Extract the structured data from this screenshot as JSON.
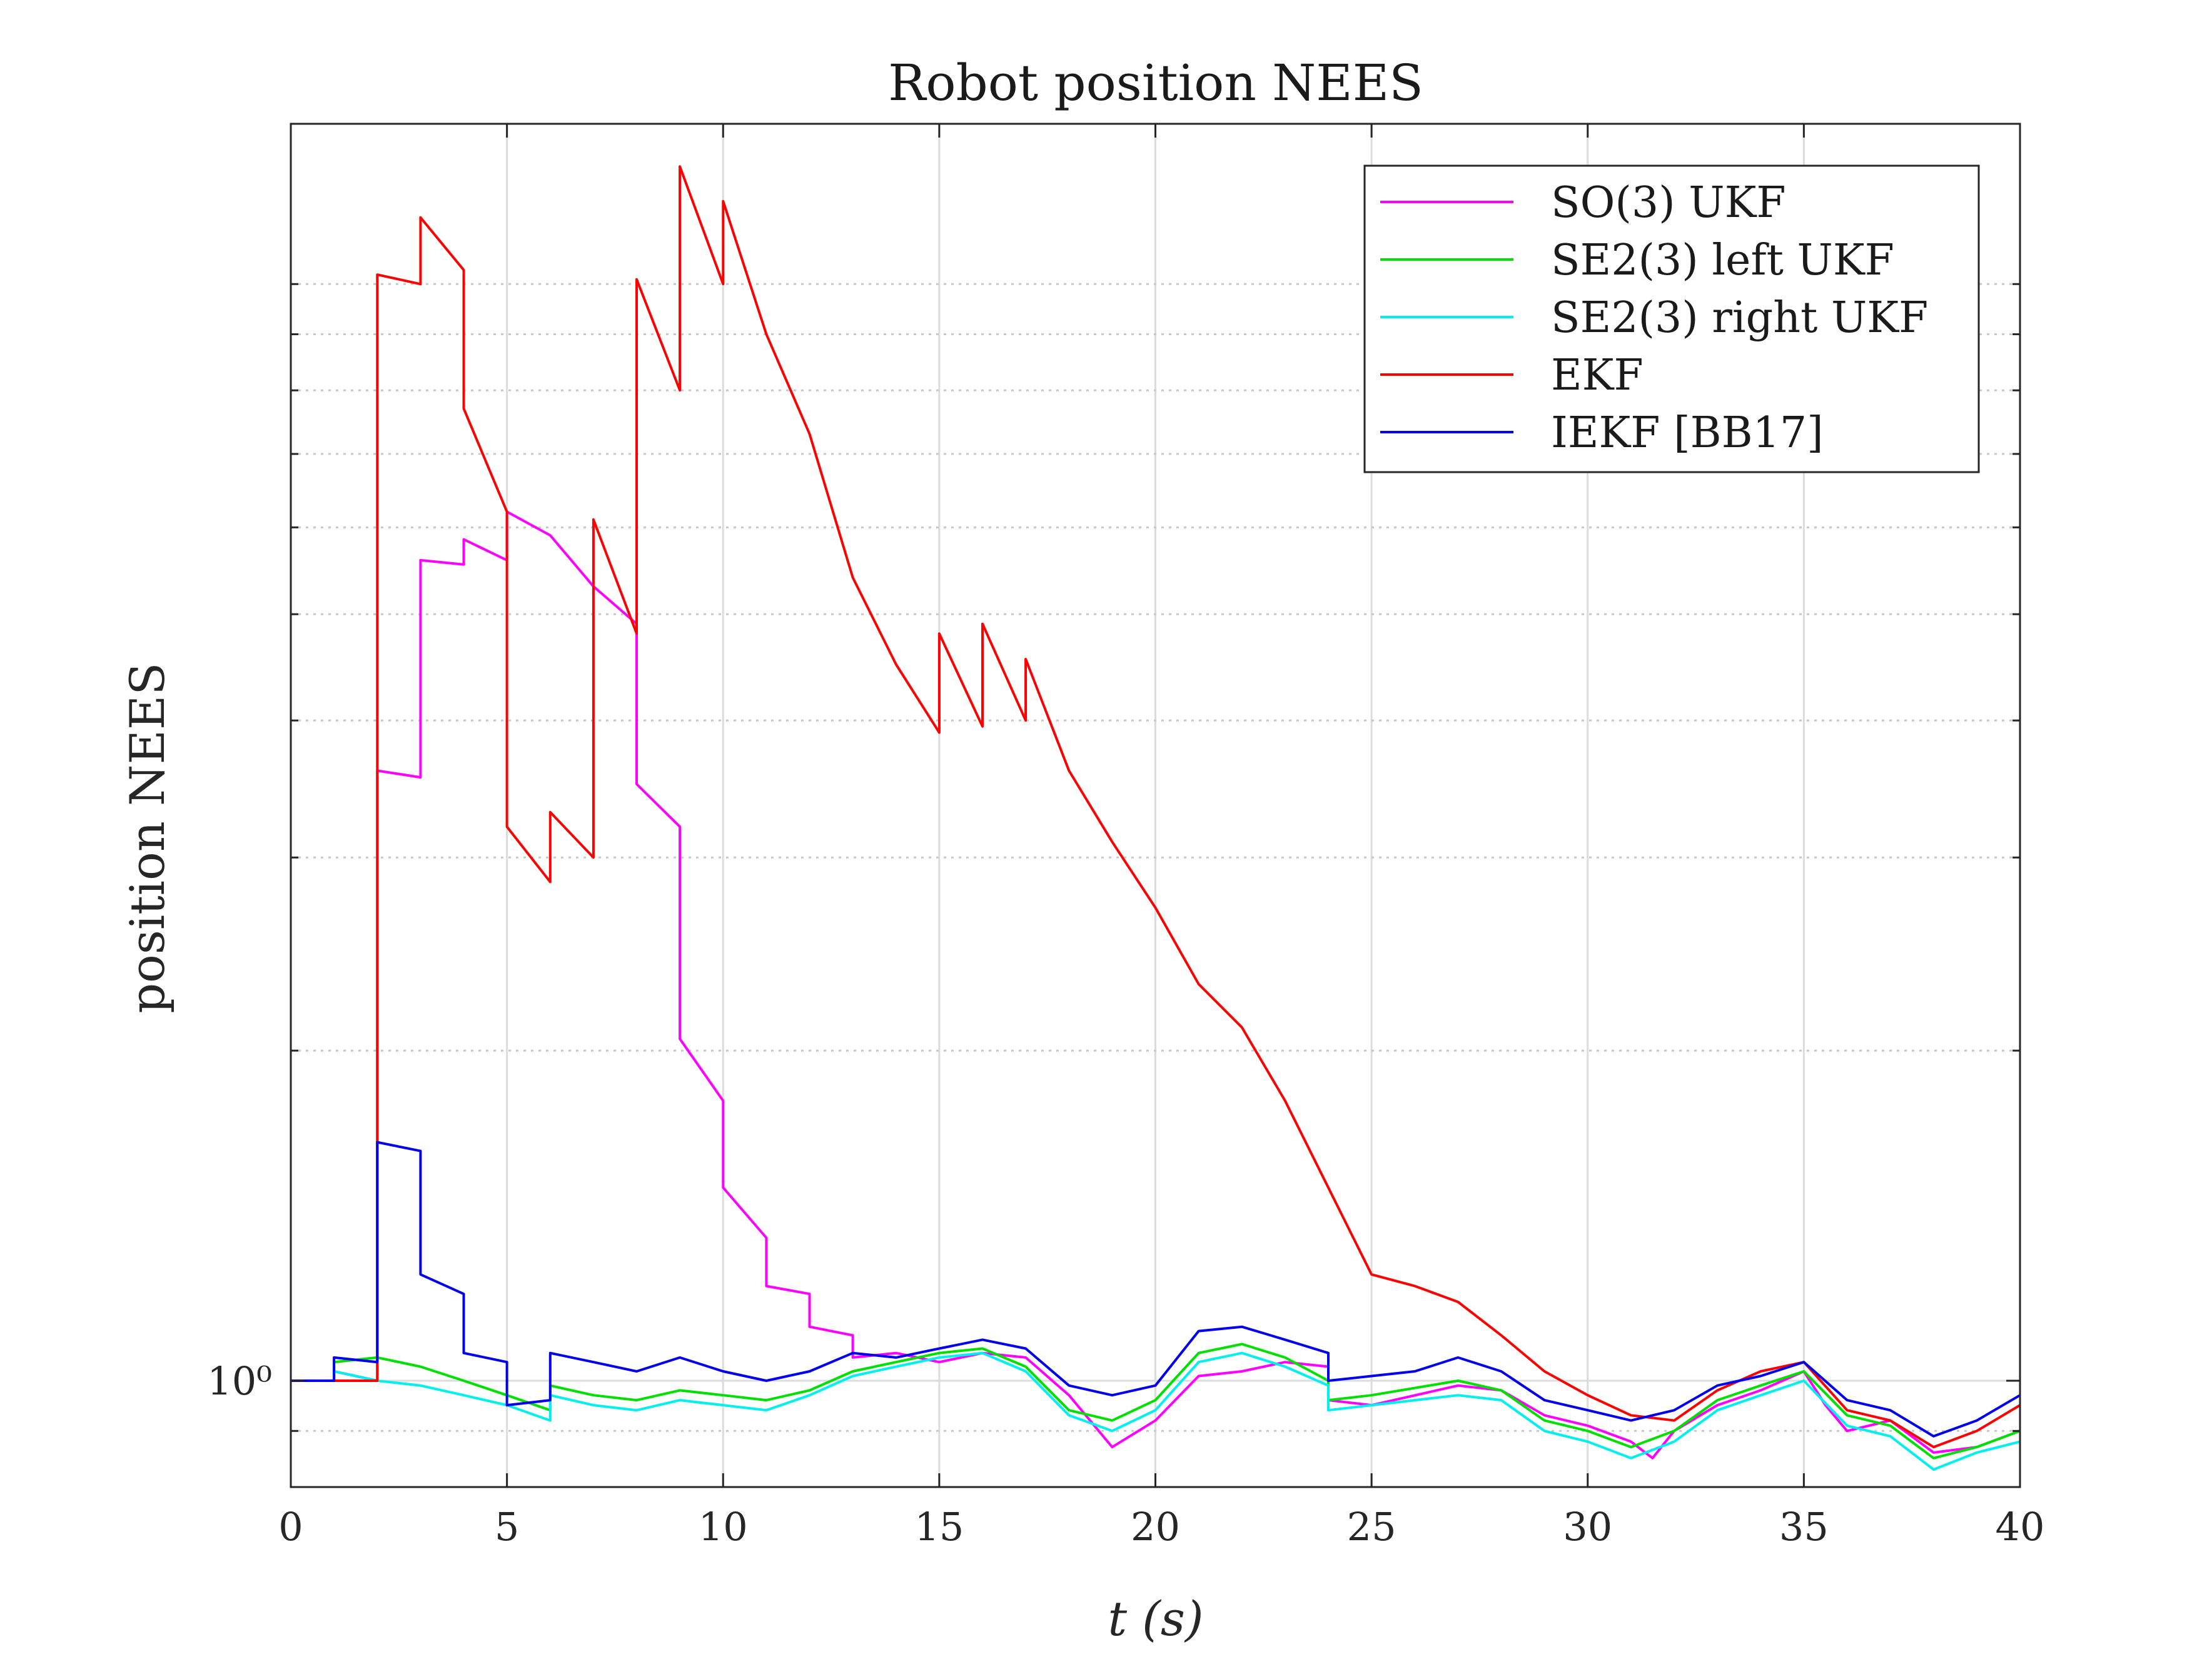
{
  "chart_data": {
    "type": "line",
    "title": "Robot position NEES",
    "xlabel": "t (s)",
    "ylabel": "position NEES",
    "yscale": "log",
    "xlim": [
      0,
      40
    ],
    "ylim": [
      0.8,
      14
    ],
    "xticks": [
      0,
      5,
      10,
      15,
      20,
      25,
      30,
      35,
      40
    ],
    "xtick_labels": [
      "0",
      "5",
      "10",
      "15",
      "20",
      "25",
      "30",
      "35",
      "40"
    ],
    "yticks": [
      1
    ],
    "ytick_labels": [
      "10⁰"
    ],
    "grid": true,
    "legend": "top-right",
    "series": [
      {
        "name": "SO(3) UKF",
        "color": "#ff00ff",
        "points": [
          [
            0,
            1.0
          ],
          [
            1,
            1.0
          ],
          [
            1.0,
            1.02
          ],
          [
            2,
            1.0
          ],
          [
            2.0,
            3.6
          ],
          [
            3,
            3.55
          ],
          [
            3.0,
            5.6
          ],
          [
            4,
            5.55
          ],
          [
            4.0,
            5.85
          ],
          [
            5,
            5.6
          ],
          [
            5.0,
            6.2
          ],
          [
            6,
            5.9
          ],
          [
            7,
            5.3
          ],
          [
            8,
            4.9
          ],
          [
            8.0,
            3.5
          ],
          [
            9,
            3.2
          ],
          [
            9.0,
            2.05
          ],
          [
            10,
            1.8
          ],
          [
            10.0,
            1.5
          ],
          [
            11,
            1.35
          ],
          [
            11.0,
            1.22
          ],
          [
            12,
            1.2
          ],
          [
            12.0,
            1.12
          ],
          [
            13,
            1.1
          ],
          [
            13.0,
            1.05
          ],
          [
            14,
            1.06
          ],
          [
            15,
            1.04
          ],
          [
            16,
            1.06
          ],
          [
            17,
            1.05
          ],
          [
            18,
            0.97
          ],
          [
            19,
            0.87
          ],
          [
            20,
            0.92
          ],
          [
            21,
            1.01
          ],
          [
            22,
            1.02
          ],
          [
            23,
            1.04
          ],
          [
            24,
            1.03
          ],
          [
            24.0,
            0.96
          ],
          [
            25,
            0.95
          ],
          [
            27,
            0.99
          ],
          [
            28,
            0.98
          ],
          [
            29,
            0.93
          ],
          [
            30,
            0.91
          ],
          [
            31,
            0.88
          ],
          [
            31.5,
            0.85
          ],
          [
            32,
            0.9
          ],
          [
            33,
            0.95
          ],
          [
            34,
            0.98
          ],
          [
            35,
            1.02
          ],
          [
            35.5,
            0.95
          ],
          [
            36,
            0.9
          ],
          [
            37,
            0.92
          ],
          [
            38,
            0.86
          ],
          [
            39,
            0.87
          ],
          [
            40,
            0.9
          ]
        ]
      },
      {
        "name": "SE2(3) left UKF",
        "color": "#00e000",
        "points": [
          [
            0,
            1.0
          ],
          [
            1,
            1.0
          ],
          [
            1.0,
            1.04
          ],
          [
            2,
            1.05
          ],
          [
            3,
            1.03
          ],
          [
            4,
            1.0
          ],
          [
            5,
            0.97
          ],
          [
            6,
            0.94
          ],
          [
            6.0,
            0.99
          ],
          [
            7,
            0.97
          ],
          [
            8,
            0.96
          ],
          [
            9,
            0.98
          ],
          [
            10,
            0.97
          ],
          [
            11,
            0.96
          ],
          [
            12,
            0.98
          ],
          [
            13,
            1.02
          ],
          [
            14,
            1.04
          ],
          [
            15,
            1.06
          ],
          [
            16,
            1.07
          ],
          [
            17,
            1.03
          ],
          [
            18,
            0.94
          ],
          [
            19,
            0.92
          ],
          [
            20,
            0.96
          ],
          [
            21,
            1.06
          ],
          [
            22,
            1.08
          ],
          [
            23,
            1.05
          ],
          [
            24,
            1.0
          ],
          [
            24.0,
            0.96
          ],
          [
            25,
            0.97
          ],
          [
            27,
            1.0
          ],
          [
            28,
            0.98
          ],
          [
            29,
            0.92
          ],
          [
            30,
            0.9
          ],
          [
            31,
            0.87
          ],
          [
            32,
            0.9
          ],
          [
            33,
            0.96
          ],
          [
            34,
            0.99
          ],
          [
            35,
            1.02
          ],
          [
            36,
            0.93
          ],
          [
            37,
            0.91
          ],
          [
            38,
            0.85
          ],
          [
            39,
            0.87
          ],
          [
            40,
            0.9
          ]
        ]
      },
      {
        "name": "SE2(3) right UKF",
        "color": "#00f0f0",
        "points": [
          [
            0,
            1.0
          ],
          [
            1,
            1.0
          ],
          [
            1.0,
            1.02
          ],
          [
            2,
            1.0
          ],
          [
            3,
            0.99
          ],
          [
            4,
            0.97
          ],
          [
            5,
            0.95
          ],
          [
            6,
            0.92
          ],
          [
            6.0,
            0.97
          ],
          [
            7,
            0.95
          ],
          [
            8,
            0.94
          ],
          [
            9,
            0.96
          ],
          [
            10,
            0.95
          ],
          [
            11,
            0.94
          ],
          [
            12,
            0.97
          ],
          [
            13,
            1.01
          ],
          [
            14,
            1.03
          ],
          [
            15,
            1.05
          ],
          [
            16,
            1.06
          ],
          [
            17,
            1.02
          ],
          [
            18,
            0.93
          ],
          [
            19,
            0.9
          ],
          [
            20,
            0.94
          ],
          [
            21,
            1.04
          ],
          [
            22,
            1.06
          ],
          [
            23,
            1.03
          ],
          [
            24,
            0.99
          ],
          [
            24.0,
            0.94
          ],
          [
            25,
            0.95
          ],
          [
            27,
            0.97
          ],
          [
            28,
            0.96
          ],
          [
            29,
            0.9
          ],
          [
            30,
            0.88
          ],
          [
            31,
            0.85
          ],
          [
            32,
            0.88
          ],
          [
            33,
            0.94
          ],
          [
            34,
            0.97
          ],
          [
            35,
            1.0
          ],
          [
            36,
            0.91
          ],
          [
            37,
            0.89
          ],
          [
            38,
            0.83
          ],
          [
            39,
            0.86
          ],
          [
            40,
            0.88
          ]
        ]
      },
      {
        "name": "EKF",
        "color": "#ff0000",
        "points": [
          [
            0,
            1.0
          ],
          [
            2,
            1.0
          ],
          [
            2.0,
            10.2
          ],
          [
            3,
            10.0
          ],
          [
            3.0,
            11.5
          ],
          [
            4,
            10.3
          ],
          [
            4.0,
            7.7
          ],
          [
            5,
            6.2
          ],
          [
            5.0,
            3.2
          ],
          [
            6,
            2.85
          ],
          [
            6.0,
            3.3
          ],
          [
            7,
            3.0
          ],
          [
            7.0,
            6.1
          ],
          [
            8,
            4.8
          ],
          [
            8.0,
            10.1
          ],
          [
            9,
            8.0
          ],
          [
            9.0,
            12.8
          ],
          [
            10,
            10.0
          ],
          [
            10.0,
            11.9
          ],
          [
            11,
            9.0
          ],
          [
            12,
            7.3
          ],
          [
            13,
            5.4
          ],
          [
            14,
            4.5
          ],
          [
            15,
            3.9
          ],
          [
            15.0,
            4.8
          ],
          [
            16,
            3.95
          ],
          [
            16.0,
            4.9
          ],
          [
            17,
            4.0
          ],
          [
            17.0,
            4.55
          ],
          [
            18,
            3.6
          ],
          [
            19,
            3.1
          ],
          [
            20,
            2.7
          ],
          [
            21,
            2.3
          ],
          [
            22,
            2.1
          ],
          [
            23,
            1.8
          ],
          [
            24,
            1.5
          ],
          [
            25,
            1.25
          ],
          [
            26,
            1.22
          ],
          [
            27,
            1.18
          ],
          [
            28,
            1.1
          ],
          [
            29,
            1.02
          ],
          [
            30,
            0.97
          ],
          [
            31,
            0.93
          ],
          [
            32,
            0.92
          ],
          [
            33,
            0.98
          ],
          [
            34,
            1.02
          ],
          [
            35,
            1.04
          ],
          [
            36,
            0.94
          ],
          [
            37,
            0.92
          ],
          [
            38,
            0.87
          ],
          [
            39,
            0.9
          ],
          [
            40,
            0.95
          ]
        ]
      },
      {
        "name": "IEKF [BB17]",
        "color": "#0000ee",
        "points": [
          [
            0,
            1.0
          ],
          [
            1,
            1.0
          ],
          [
            1.0,
            1.05
          ],
          [
            2,
            1.04
          ],
          [
            2.0,
            1.65
          ],
          [
            3,
            1.62
          ],
          [
            3.0,
            1.25
          ],
          [
            4,
            1.2
          ],
          [
            4.0,
            1.06
          ],
          [
            5,
            1.04
          ],
          [
            5.0,
            0.95
          ],
          [
            6,
            0.96
          ],
          [
            6.0,
            1.06
          ],
          [
            7,
            1.04
          ],
          [
            8,
            1.02
          ],
          [
            9,
            1.05
          ],
          [
            10,
            1.02
          ],
          [
            11,
            1.0
          ],
          [
            12,
            1.02
          ],
          [
            13,
            1.06
          ],
          [
            14,
            1.05
          ],
          [
            15,
            1.07
          ],
          [
            16,
            1.09
          ],
          [
            17,
            1.07
          ],
          [
            18,
            0.99
          ],
          [
            19,
            0.97
          ],
          [
            20,
            0.99
          ],
          [
            21,
            1.11
          ],
          [
            22,
            1.12
          ],
          [
            23,
            1.09
          ],
          [
            24,
            1.06
          ],
          [
            24.0,
            1.0
          ],
          [
            25,
            1.01
          ],
          [
            26,
            1.02
          ],
          [
            27,
            1.05
          ],
          [
            28,
            1.02
          ],
          [
            29,
            0.96
          ],
          [
            30,
            0.94
          ],
          [
            31,
            0.92
          ],
          [
            32,
            0.94
          ],
          [
            33,
            0.99
          ],
          [
            34,
            1.01
          ],
          [
            35,
            1.04
          ],
          [
            36,
            0.96
          ],
          [
            37,
            0.94
          ],
          [
            38,
            0.89
          ],
          [
            39,
            0.92
          ],
          [
            40,
            0.97
          ]
        ]
      }
    ]
  }
}
